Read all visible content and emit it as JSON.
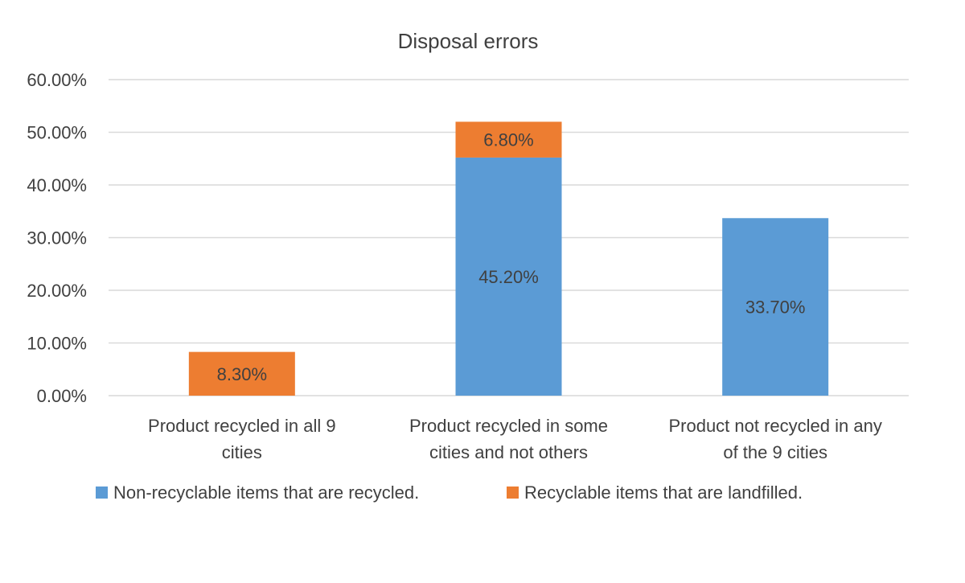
{
  "chart_data": {
    "type": "bar",
    "stacked": true,
    "title": "Disposal errors",
    "categories": [
      [
        "Product recycled in all 9",
        "cities"
      ],
      [
        "Product recycled in some",
        "cities and not others"
      ],
      [
        "Product not recycled in any",
        "of the 9 cities"
      ]
    ],
    "series": [
      {
        "name": "Non-recyclable items that are recycled.",
        "color": "#5B9BD5",
        "values": [
          0,
          45.2,
          33.7
        ],
        "labels": [
          "",
          "45.20%",
          "33.70%"
        ]
      },
      {
        "name": "Recyclable items that are landfilled.",
        "color": "#ED7D31",
        "values": [
          8.3,
          6.8,
          0
        ],
        "labels": [
          "8.30%",
          "6.80%",
          ""
        ]
      }
    ],
    "yticks": [
      "0.00%",
      "10.00%",
      "20.00%",
      "30.00%",
      "40.00%",
      "50.00%",
      "60.00%"
    ],
    "ylim": [
      0,
      60
    ],
    "grid": true,
    "legend_position": "bottom",
    "xlabel": "",
    "ylabel": ""
  }
}
